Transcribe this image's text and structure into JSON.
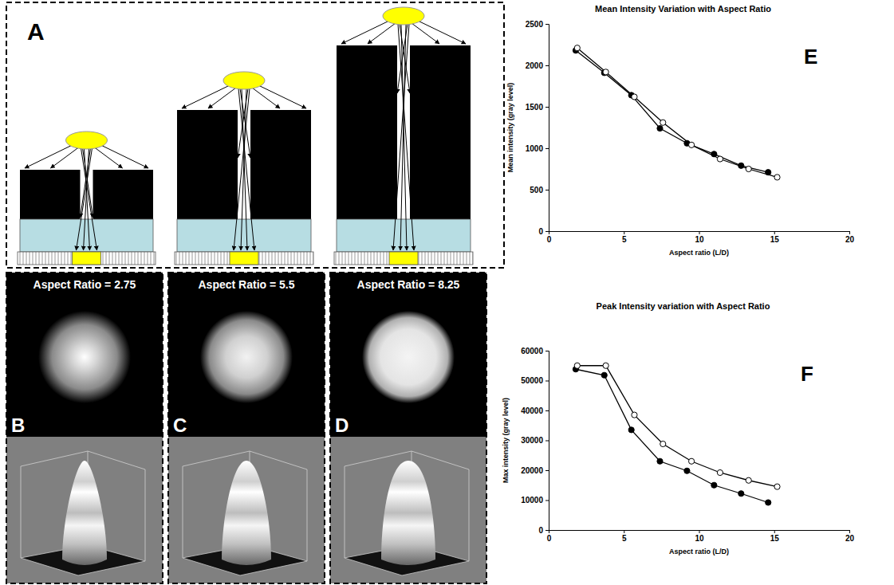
{
  "figure": {
    "panel_A": {
      "letter": "A"
    },
    "images": [
      {
        "letter": "B",
        "label": "Aspect Ratio = 2.75"
      },
      {
        "letter": "C",
        "label": "Aspect Ratio = 5.5"
      },
      {
        "letter": "D",
        "label": "Aspect Ratio = 8.25"
      }
    ]
  },
  "chart_data": [
    {
      "type": "line",
      "title": "Mean Intensity Variation with Aspect Ratio",
      "x_label": "Aspect ratio (L/D)",
      "y_label": "Mean intensity (gray level)",
      "xlim": [
        0,
        20
      ],
      "xticks": [
        0,
        5,
        10,
        15,
        20
      ],
      "ylim": [
        0,
        2500
      ],
      "yticks": [
        0,
        500,
        1000,
        1500,
        2000,
        2500
      ],
      "grid": false,
      "annotations": [
        {
          "text": "E"
        }
      ],
      "series": [
        {
          "color": "#000000",
          "marker": "filled-circle",
          "line_style": "solid",
          "x": [
            1.8,
            3.7,
            5.5,
            7.4,
            9.2,
            11.0,
            12.8,
            14.6
          ],
          "values": [
            2180,
            1910,
            1640,
            1240,
            1060,
            930,
            790,
            710
          ]
        },
        {
          "color": "#000000",
          "marker": "open-circle",
          "line_style": "solid",
          "x": [
            1.9,
            3.8,
            5.7,
            7.6,
            9.5,
            11.4,
            13.3,
            15.2
          ],
          "values": [
            2210,
            1920,
            1620,
            1310,
            1040,
            870,
            750,
            650
          ]
        }
      ]
    },
    {
      "type": "line",
      "title": "Peak Intensity variation with Aspect Ratio",
      "x_label": "Aspect ratio (L/D)",
      "y_label": "Max intensity (gray level)",
      "xlim": [
        0,
        20
      ],
      "xticks": [
        0,
        5,
        10,
        15,
        20
      ],
      "ylim": [
        0,
        60000
      ],
      "yticks": [
        0,
        10000,
        20000,
        30000,
        40000,
        50000,
        60000
      ],
      "grid": false,
      "annotations": [
        {
          "text": "F"
        }
      ],
      "series": [
        {
          "color": "#000000",
          "marker": "filled-circle",
          "line_style": "solid",
          "x": [
            1.8,
            3.7,
            5.5,
            7.4,
            9.2,
            11.0,
            12.8,
            14.6
          ],
          "values": [
            53800,
            51800,
            33500,
            23000,
            19800,
            15000,
            12200,
            9200
          ]
        },
        {
          "color": "#000000",
          "marker": "open-circle",
          "line_style": "solid",
          "x": [
            1.9,
            3.8,
            5.7,
            7.6,
            9.5,
            11.4,
            13.3,
            15.2
          ],
          "values": [
            55000,
            55000,
            38500,
            28800,
            23000,
            19200,
            16600,
            14500
          ]
        }
      ]
    }
  ]
}
